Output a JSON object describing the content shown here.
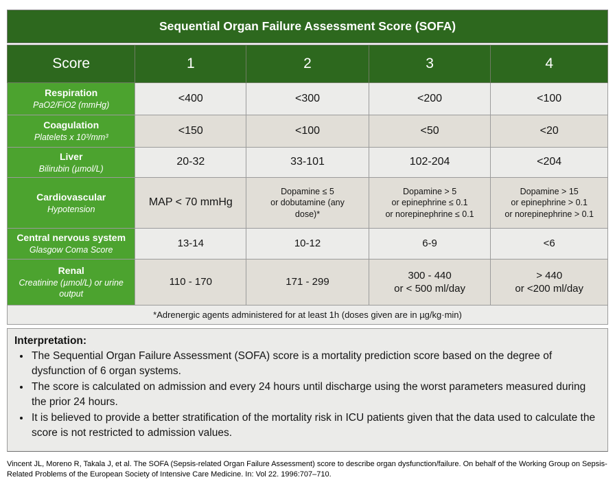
{
  "title": "Sequential Organ Failure Assessment Score (SOFA)",
  "table": {
    "header": [
      "Score",
      "1",
      "2",
      "3",
      "4"
    ],
    "rows": [
      {
        "system": "Respiration",
        "subtitle": "PaO2/FiO2 (mmHg)",
        "values": [
          "<400",
          "<300",
          "<200",
          "<100"
        ]
      },
      {
        "system": "Coagulation",
        "subtitle": "Platelets x 10³/mm³",
        "values": [
          "<150",
          "<100",
          "<50",
          "<20"
        ]
      },
      {
        "system": "Liver",
        "subtitle": "Bilirubin (µmol/L)",
        "values": [
          "20-32",
          "33-101",
          "102-204",
          "<204"
        ]
      },
      {
        "system": "Cardiovascular",
        "subtitle": "Hypotension",
        "values": [
          "MAP < 70 mmHg",
          "Dopamine ≤ 5\nor dobutamine (any\ndose)*",
          "Dopamine > 5\nor epinephrine ≤ 0.1\nor norepinephrine ≤ 0.1",
          "Dopamine > 15\nor epinephrine > 0.1\nor norepinephrine > 0.1"
        ]
      },
      {
        "system": "Central nervous system",
        "subtitle": "Glasgow Coma Score",
        "values": [
          "13-14",
          "10-12",
          "6-9",
          "<6"
        ]
      },
      {
        "system": "Renal",
        "subtitle": "Creatinine (µmol/L) or urine output",
        "values": [
          "110 - 170",
          "171 - 299",
          "300 - 440\nor < 500 ml/day",
          "> 440\nor <200 ml/day"
        ]
      }
    ],
    "footnote": "*Adrenergic agents administered for at least 1h (doses given are in µg/kg·min)"
  },
  "interpretation": {
    "heading": "Interpretation:",
    "bullets": [
      "The Sequential Organ Failure Assessment (SOFA) score is a mortality prediction score based on the degree of dysfunction of 6 organ systems.",
      "The score is calculated on admission and every 24 hours until discharge using the worst parameters measured during the prior 24 hours.",
      "It is believed to provide a better stratification of the mortality risk in ICU patients given that the data used to calculate the score is not restricted to admission values."
    ]
  },
  "citation": "Vincent JL, Moreno R, Takala J, et al. The SOFA (Sepsis-related Organ Failure Assessment) score to describe organ dysfunction/failure. On behalf of the Working Group on Sepsis-Related Problems of the European Society of Intensive Care Medicine. In: Vol 22. 1996:707–710.",
  "colors": {
    "header_green": "#2D681E",
    "row_label_green": "#4CA32F",
    "cell_light": "#ECECEA",
    "cell_beige": "#E1DED7",
    "panel_bg": "#EBEBE9"
  }
}
